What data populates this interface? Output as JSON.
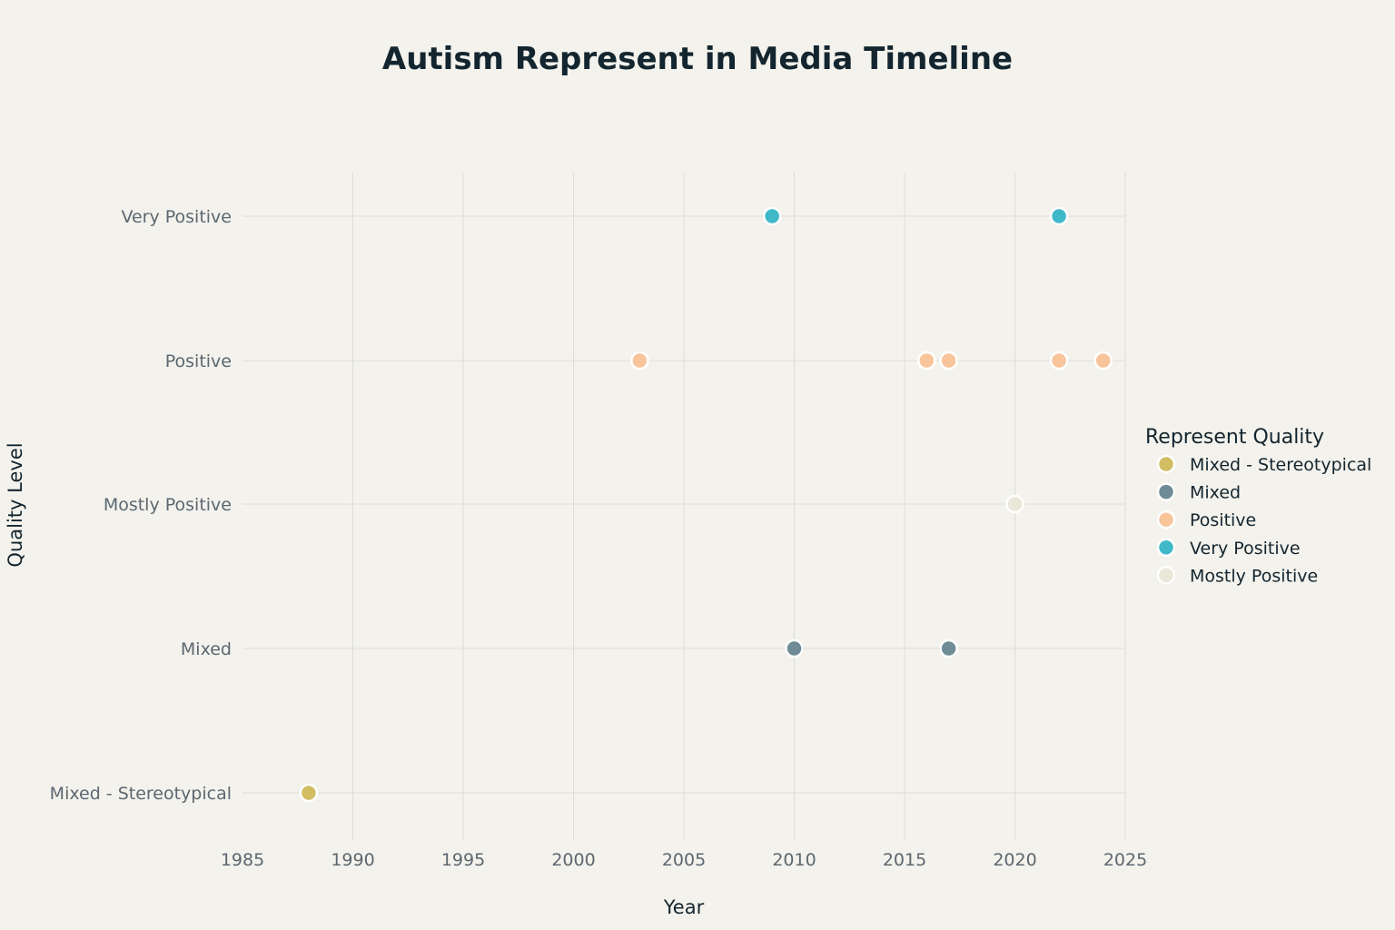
{
  "chart_data": {
    "type": "scatter",
    "title": "Autism Represent in Media Timeline",
    "xlabel": "Year",
    "ylabel": "Quality Level",
    "xlim": [
      1985,
      2025
    ],
    "x_ticks": [
      1985,
      1990,
      1995,
      2000,
      2005,
      2010,
      2015,
      2020,
      2025
    ],
    "categories": [
      "Mixed - Stereotypical",
      "Mixed",
      "Mostly Positive",
      "Positive",
      "Very Positive"
    ],
    "grid": true,
    "legend": {
      "title": "Represent Quality",
      "position": "right"
    },
    "series": [
      {
        "name": "Mixed - Stereotypical",
        "color": "#d2bd63",
        "points": [
          {
            "x": 1988,
            "y": "Mixed - Stereotypical"
          }
        ]
      },
      {
        "name": "Mixed",
        "color": "#6e8b96",
        "points": [
          {
            "x": 2010,
            "y": "Mixed"
          },
          {
            "x": 2017,
            "y": "Mixed"
          }
        ]
      },
      {
        "name": "Positive",
        "color": "#f8c49a",
        "points": [
          {
            "x": 2003,
            "y": "Positive"
          },
          {
            "x": 2016,
            "y": "Positive"
          },
          {
            "x": 2017,
            "y": "Positive"
          },
          {
            "x": 2022,
            "y": "Positive"
          },
          {
            "x": 2024,
            "y": "Positive"
          }
        ]
      },
      {
        "name": "Very Positive",
        "color": "#3fb8c8",
        "points": [
          {
            "x": 2009,
            "y": "Very Positive"
          },
          {
            "x": 2022,
            "y": "Very Positive"
          }
        ]
      },
      {
        "name": "Mostly Positive",
        "color": "#e9e7d8",
        "points": [
          {
            "x": 2020,
            "y": "Mostly Positive"
          }
        ]
      }
    ]
  }
}
